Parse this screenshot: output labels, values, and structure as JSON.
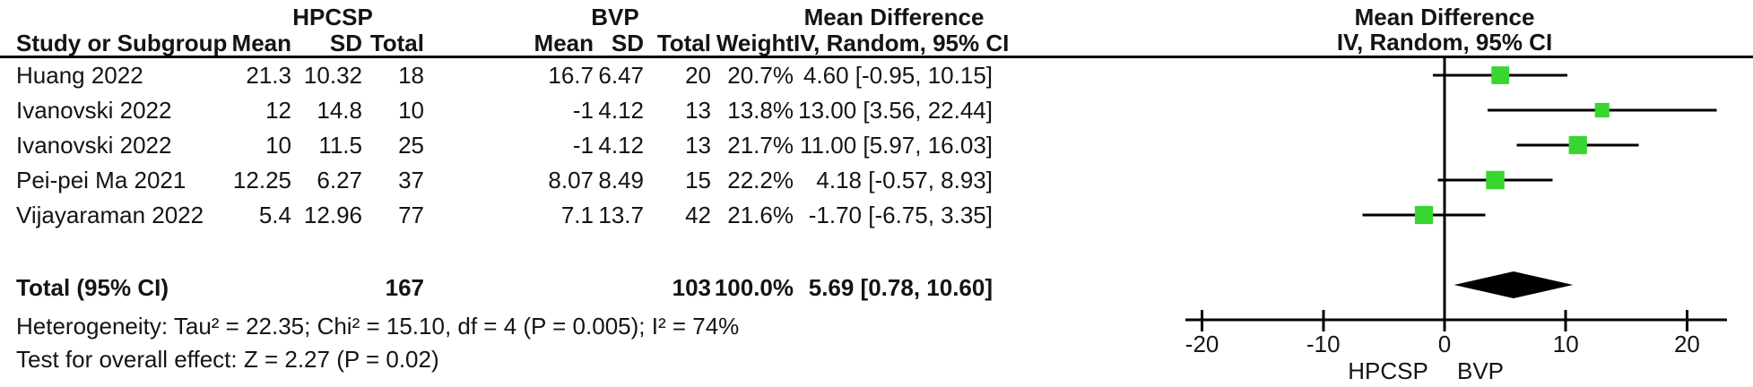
{
  "table": {
    "group1": "HPCSP",
    "group2": "BVP",
    "columns": {
      "study": "Study or Subgroup",
      "mean": "Mean",
      "sd": "SD",
      "total": "Total",
      "mean2": "Mean",
      "sd2": "SD",
      "total2": "Total",
      "weight": "Weight",
      "effect_title": "Mean Difference",
      "effect_subtitle": "IV, Random, 95% CI"
    },
    "plot_header": {
      "title": "Mean Difference",
      "subtitle": "IV, Random, 95% CI"
    },
    "studies": [
      {
        "name": "Huang 2022",
        "mean1": "21.3",
        "sd1": "10.32",
        "total1": "18",
        "mean2": "16.7",
        "sd2": "6.47",
        "total2": "20",
        "weight": "20.7%",
        "ci": "4.60 [-0.95, 10.15]"
      },
      {
        "name": "Ivanovski 2022",
        "mean1": "12",
        "sd1": "14.8",
        "total1": "10",
        "mean2": "-1",
        "sd2": "4.12",
        "total2": "13",
        "weight": "13.8%",
        "ci": "13.00 [3.56, 22.44]"
      },
      {
        "name": "Ivanovski 2022",
        "mean1": "10",
        "sd1": "11.5",
        "total1": "25",
        "mean2": "-1",
        "sd2": "4.12",
        "total2": "13",
        "weight": "21.7%",
        "ci": "11.00 [5.97, 16.03]"
      },
      {
        "name": "Pei-pei Ma 2021",
        "mean1": "12.25",
        "sd1": "6.27",
        "total1": "37",
        "mean2": "8.07",
        "sd2": "8.49",
        "total2": "15",
        "weight": "22.2%",
        "ci": "4.18 [-0.57, 8.93]"
      },
      {
        "name": "Vijayaraman 2022",
        "mean1": "5.4",
        "sd1": "12.96",
        "total1": "77",
        "mean2": "7.1",
        "sd2": "13.7",
        "total2": "42",
        "weight": "21.6%",
        "ci": "-1.70 [-6.75, 3.35]"
      }
    ],
    "total_row": {
      "label": "Total (95% CI)",
      "total1": "167",
      "total2": "103",
      "weight": "100.0%",
      "ci": "5.69 [0.78, 10.60]"
    },
    "heterogeneity": "Heterogeneity: Tau² = 22.35; Chi² = 15.10, df = 4 (P = 0.005); I² = 74%",
    "overall_effect": "Test for overall effect: Z = 2.27 (P = 0.02)"
  },
  "chart_data": {
    "type": "scatter",
    "subtype": "forest-plot",
    "title": "Mean Difference",
    "effect_measure": "IV, Random, 95% CI",
    "studies": [
      {
        "name": "Huang 2022",
        "md": 4.6,
        "ci_low": -0.95,
        "ci_high": 10.15,
        "weight_pct": 20.7
      },
      {
        "name": "Ivanovski 2022",
        "md": 13.0,
        "ci_low": 3.56,
        "ci_high": 22.44,
        "weight_pct": 13.8
      },
      {
        "name": "Ivanovski 2022",
        "md": 11.0,
        "ci_low": 5.97,
        "ci_high": 16.03,
        "weight_pct": 21.7
      },
      {
        "name": "Pei-pei Ma 2021",
        "md": 4.18,
        "ci_low": -0.57,
        "ci_high": 8.93,
        "weight_pct": 22.2
      },
      {
        "name": "Vijayaraman 2022",
        "md": -1.7,
        "ci_low": -6.75,
        "ci_high": 3.35,
        "weight_pct": 21.6
      }
    ],
    "total": {
      "label": "Total (95% CI)",
      "md": 5.69,
      "ci_low": 0.78,
      "ci_high": 10.6,
      "weight_pct": 100.0
    },
    "xlim": [
      -23,
      23
    ],
    "axis_ticks": [
      -20,
      -10,
      0,
      10,
      20
    ],
    "axis_left_label": "HPCSP",
    "axis_right_label": "BVP",
    "marker_color": "#38d630",
    "line_color": "#000000"
  }
}
